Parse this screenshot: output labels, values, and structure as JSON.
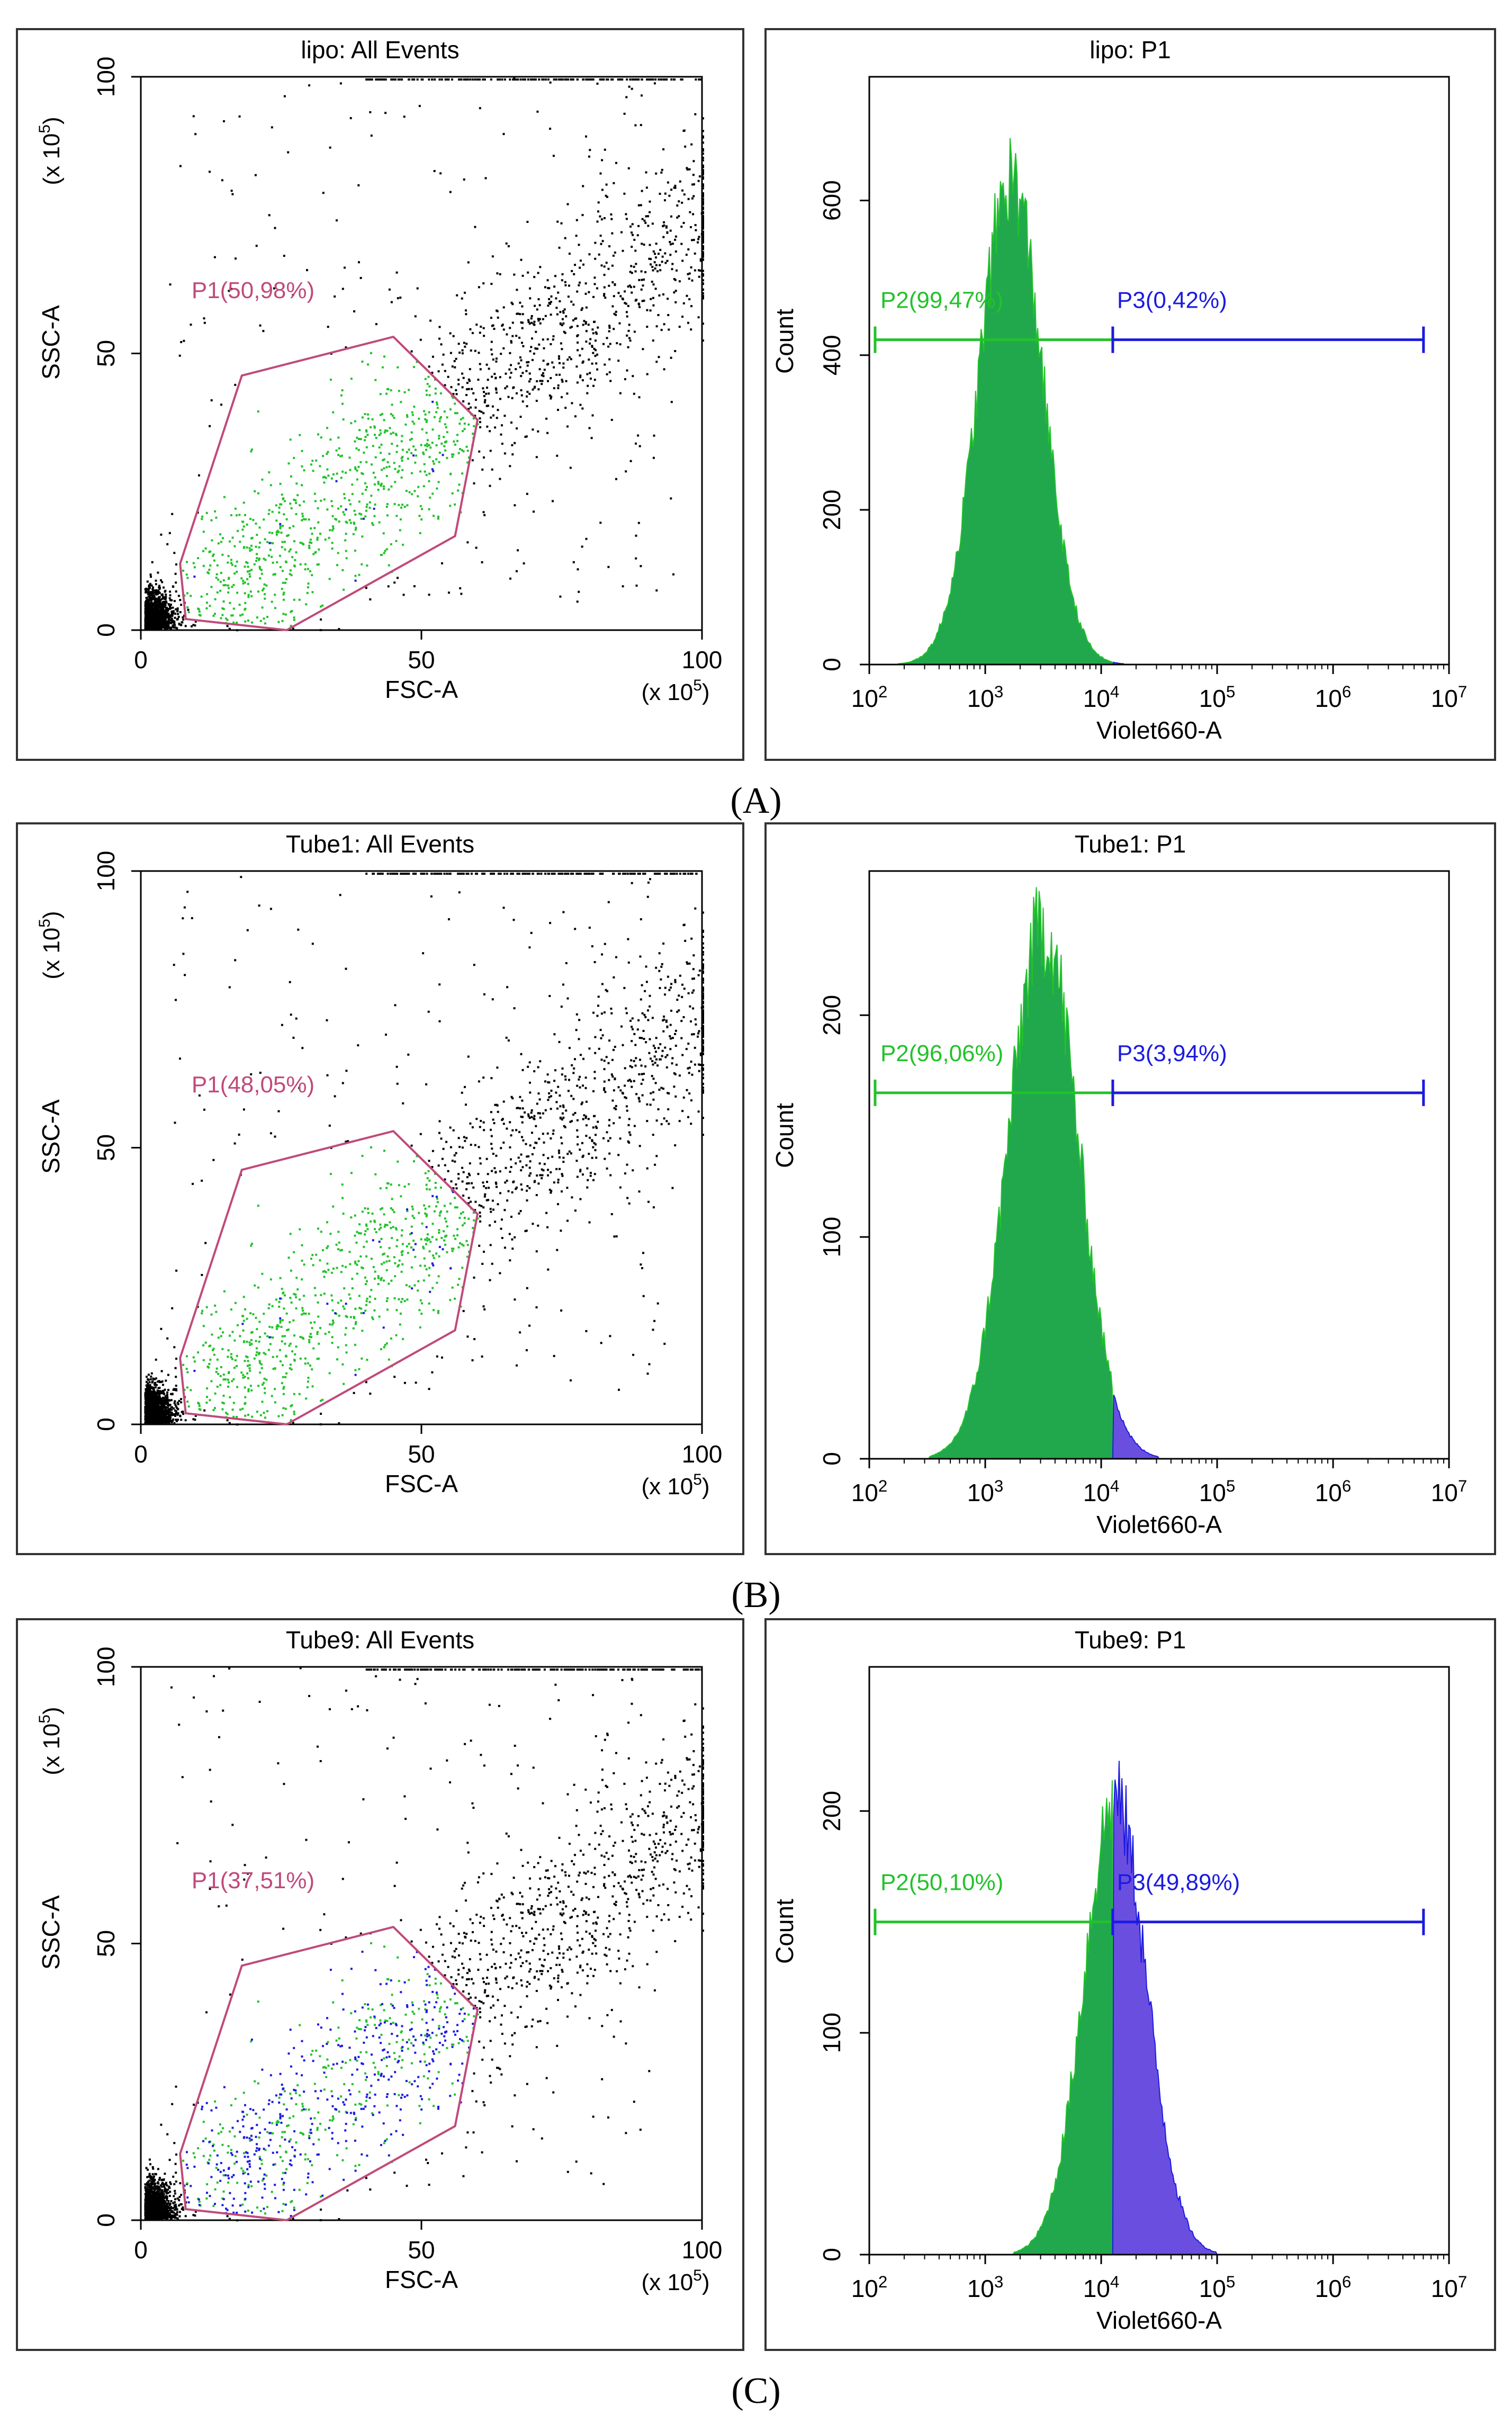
{
  "colors": {
    "gate": "#c04a7a",
    "green": "#22c22a",
    "green_fill": "#21a84c",
    "blue": "#1b1be0",
    "blue_fill": "#6a4ee0",
    "dots": "#000000"
  },
  "rows": [
    {
      "label": "(A)",
      "scatter": {
        "title": "lipo: All Events",
        "xlabel": "FSC-A",
        "ylabel": "SSC-A",
        "x_multiplier": "(x 10^5)",
        "y_multiplier": "(x 10^5)",
        "x_ticks": [
          "0",
          "50",
          "100"
        ],
        "y_ticks": [
          "0",
          "50",
          "100"
        ],
        "gate_label": "P1(50,98%)",
        "gate_polygon": [
          [
            7,
            12
          ],
          [
            18,
            46
          ],
          [
            45,
            53
          ],
          [
            60,
            38
          ],
          [
            56,
            17
          ],
          [
            26,
            0
          ],
          [
            8,
            2
          ]
        ],
        "blue_fraction": 0.02
      },
      "hist": {
        "title": "lipo: P1",
        "xlabel": "Violet660-A",
        "ylabel": "Count",
        "x_ticks": [
          "10^2",
          "10^3",
          "10^4",
          "10^5",
          "10^6",
          "10^7"
        ],
        "y_ticks": [
          "0",
          "200",
          "400",
          "600"
        ],
        "ymax": 760,
        "split_log": 4.1,
        "peak": 630,
        "mu": 3.22,
        "sigma": 0.27,
        "gate_y": 420,
        "gate_x": [
          2.05,
          6.78
        ],
        "p2_label": "P2(99,47%)",
        "p3_label": "P3(0,42%)"
      }
    },
    {
      "label": "(B)",
      "scatter": {
        "title": "Tube1: All Events",
        "xlabel": "FSC-A",
        "ylabel": "SSC-A",
        "x_multiplier": "(x 10^5)",
        "y_multiplier": "(x 10^5)",
        "x_ticks": [
          "0",
          "50",
          "100"
        ],
        "y_ticks": [
          "0",
          "50",
          "100"
        ],
        "gate_label": "P1(48,05%)",
        "gate_polygon": [
          [
            7,
            12
          ],
          [
            18,
            46
          ],
          [
            45,
            53
          ],
          [
            60,
            38
          ],
          [
            56,
            17
          ],
          [
            26,
            0
          ],
          [
            8,
            2
          ]
        ],
        "blue_fraction": 0.05
      },
      "hist": {
        "title": "Tube1: P1",
        "xlabel": "Violet660-A",
        "ylabel": "Count",
        "x_ticks": [
          "10^2",
          "10^3",
          "10^4",
          "10^5",
          "10^6",
          "10^7"
        ],
        "y_ticks": [
          "0",
          "100",
          "200"
        ],
        "ymax": 265,
        "split_log": 4.1,
        "peak": 240,
        "mu": 3.5,
        "sigma": 0.3,
        "gate_y": 165,
        "gate_x": [
          2.05,
          6.78
        ],
        "p2_label": "P2(96,06%)",
        "p3_label": "P3(3,94%)"
      }
    },
    {
      "label": "(C)",
      "scatter": {
        "title": "Tube9: All Events",
        "xlabel": "FSC-A",
        "ylabel": "SSC-A",
        "x_multiplier": "(x 10^5)",
        "y_multiplier": "(x 10^5)",
        "x_ticks": [
          "0",
          "50",
          "100"
        ],
        "y_ticks": [
          "0",
          "50",
          "100"
        ],
        "gate_label": "P1(37,51%)",
        "gate_polygon": [
          [
            7,
            12
          ],
          [
            18,
            46
          ],
          [
            45,
            53
          ],
          [
            60,
            38
          ],
          [
            56,
            17
          ],
          [
            26,
            0
          ],
          [
            8,
            2
          ]
        ],
        "blue_fraction": 0.55
      },
      "hist": {
        "title": "Tube9: P1",
        "xlabel": "Violet660-A",
        "ylabel": "Count",
        "x_ticks": [
          "10^2",
          "10^3",
          "10^4",
          "10^5",
          "10^6",
          "10^7"
        ],
        "y_ticks": [
          "0",
          "100",
          "200"
        ],
        "ymax": 265,
        "split_log": 4.1,
        "peak": 205,
        "mu": 4.12,
        "sigma": 0.27,
        "gate_y": 150,
        "gate_x": [
          2.05,
          6.78
        ],
        "p2_label": "P2(50,10%)",
        "p3_label": "P3(49,89%)"
      }
    }
  ]
}
